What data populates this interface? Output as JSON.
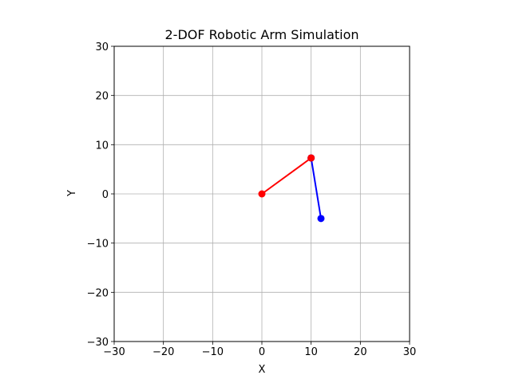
{
  "chart_data": {
    "type": "line",
    "title": "2-DOF Robotic Arm Simulation",
    "xlabel": "X",
    "ylabel": "Y",
    "xlim": [
      -30,
      30
    ],
    "ylim": [
      -30,
      30
    ],
    "xticks": [
      -30,
      -20,
      -10,
      0,
      10,
      20,
      30
    ],
    "yticks": [
      -30,
      -20,
      -10,
      0,
      10,
      20,
      30
    ],
    "grid": true,
    "aspect": "equal",
    "series": [
      {
        "color": "#ff0000",
        "marker": "circle",
        "x": [
          0,
          10
        ],
        "y": [
          0,
          7.3
        ]
      },
      {
        "color": "#0000ff",
        "marker": "circle",
        "x": [
          10,
          12
        ],
        "y": [
          7.3,
          -5
        ]
      }
    ],
    "highlight_points": [
      {
        "color": "#ff0000",
        "x": 10,
        "y": 7.3
      }
    ]
  }
}
